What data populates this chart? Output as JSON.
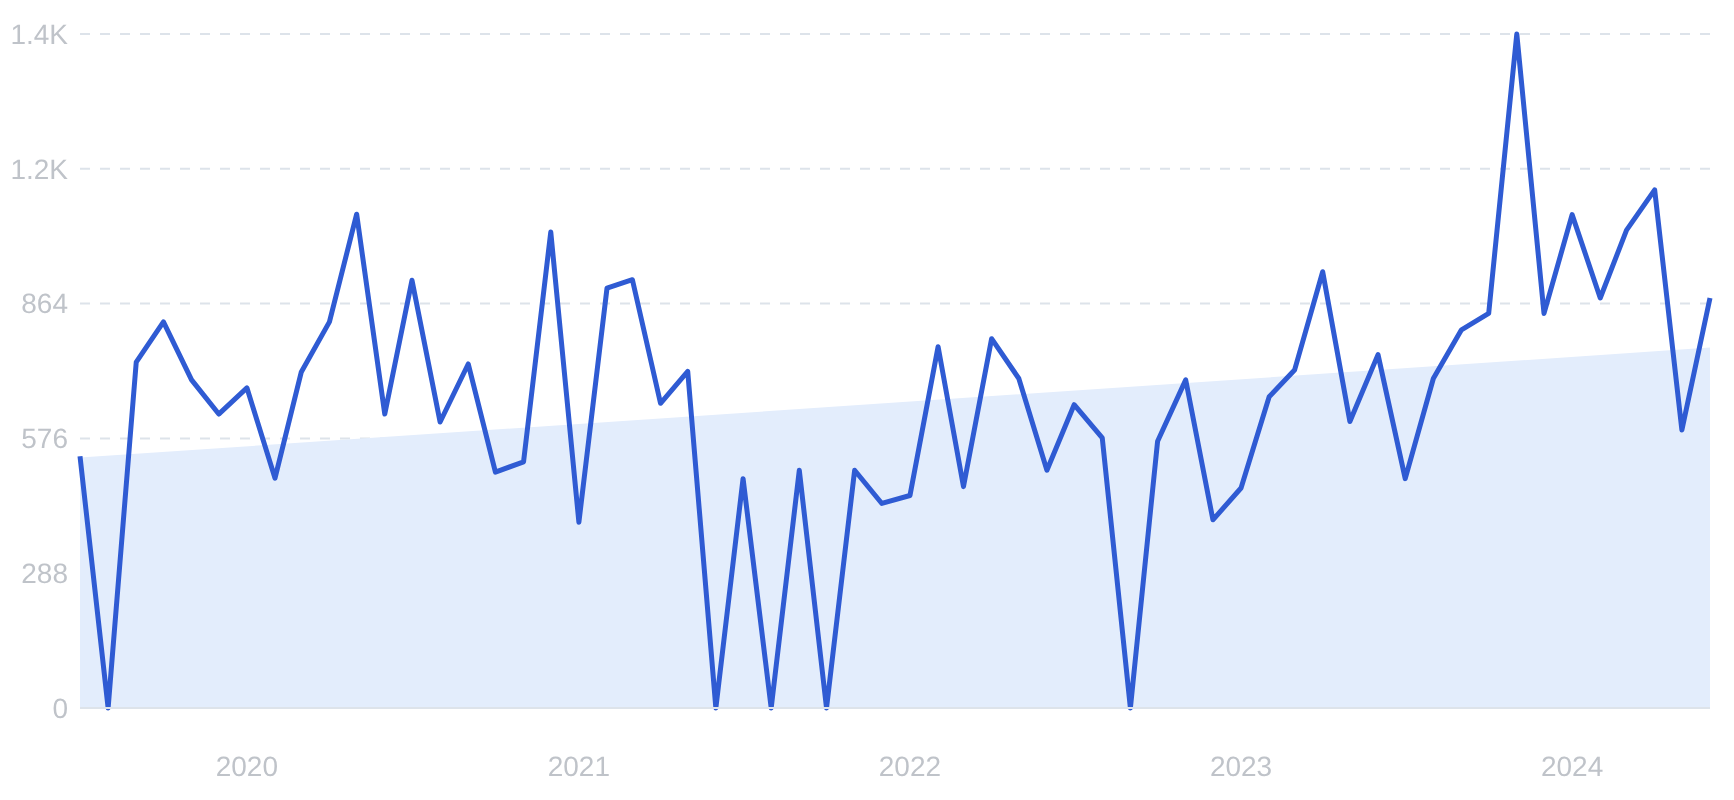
{
  "chart_data": {
    "type": "line",
    "x": [
      "2019-07",
      "2019-08",
      "2019-09",
      "2019-10",
      "2019-11",
      "2019-12",
      "2020-01",
      "2020-02",
      "2020-03",
      "2020-04",
      "2020-05",
      "2020-06",
      "2020-07",
      "2020-08",
      "2020-09",
      "2020-10",
      "2020-11",
      "2020-12",
      "2021-01",
      "2021-02",
      "2021-03",
      "2021-04",
      "2021-05",
      "2021-06",
      "2021-07",
      "2021-08",
      "2021-09",
      "2021-10",
      "2021-11",
      "2021-12",
      "2022-01",
      "2022-02",
      "2022-03",
      "2022-04",
      "2022-05",
      "2022-06",
      "2022-07",
      "2022-08",
      "2022-09",
      "2022-10",
      "2022-11",
      "2022-12",
      "2023-01",
      "2023-02",
      "2023-03",
      "2023-04",
      "2023-05",
      "2023-06",
      "2023-07",
      "2023-08",
      "2023-09",
      "2023-10",
      "2023-11",
      "2023-12",
      "2024-01",
      "2024-02",
      "2024-03",
      "2024-04",
      "2024-05",
      "2024-06"
    ],
    "series": [
      {
        "type": "area",
        "color": "#e3edfc",
        "x": [
          "2019-07",
          "2024-06"
        ],
        "values": [
          535,
          770
        ]
      },
      {
        "color": "#2f5bd3",
        "values": [
          538,
          0,
          739,
          825,
          701,
          628,
          684,
          491,
          718,
          825,
          1055,
          628,
          914,
          611,
          735,
          504,
          526,
          1017,
          397,
          897,
          915,
          651,
          719,
          0,
          490,
          0,
          508,
          0,
          508,
          437,
          454,
          772,
          473,
          789,
          704,
          508,
          648,
          577,
          0,
          570,
          701,
          402,
          470,
          665,
          722,
          932,
          612,
          755,
          490,
          704,
          808,
          843,
          1440,
          843,
          1054,
          876,
          1021,
          1107,
          594,
          876
        ]
      }
    ],
    "xlim": [
      "2019-07",
      "2024-06"
    ],
    "xticks": [
      "2020",
      "2021",
      "2022",
      "2023",
      "2024"
    ],
    "ylim": [
      0,
      1440
    ],
    "yticks": [
      0,
      288,
      576,
      864,
      {
        "value": 1152,
        "label": "1.2K"
      },
      {
        "value": 1440,
        "label": "1.4K"
      }
    ],
    "grid": "y",
    "line_style": "solid",
    "marker": "none"
  }
}
